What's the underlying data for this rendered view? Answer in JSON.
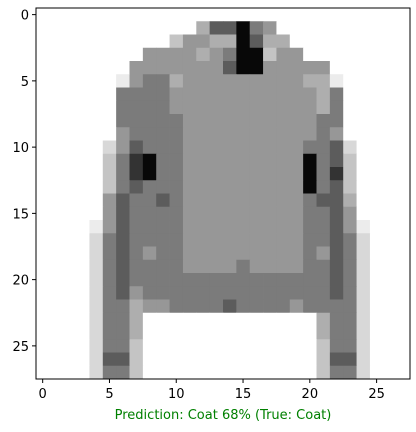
{
  "chart_data": {
    "type": "heatmap",
    "colormap": "binary",
    "grid": false,
    "xlim": [
      -0.5,
      27.5
    ],
    "ylim": [
      27.5,
      -0.5
    ],
    "xticks": [
      0,
      5,
      10,
      15,
      20,
      25
    ],
    "yticks": [
      0,
      5,
      10,
      15,
      20,
      25
    ],
    "caption": "Prediction: Coat 68% (True: Coat)",
    "caption_color": "#008000",
    "pixels": [
      "0000000000000000000000000000",
      "0000000000004779650000000000",
      "0000000000355449744000000000",
      "0000000055554569935500000000",
      "0000000555555579955555000000",
      "0000001566455555555544100000",
      "0000006666555555555554600000",
      "0000006666555555555554600000",
      "0000006666655555555556600000",
      "0000005666655555555556500000",
      "0000025766655555555566720000",
      "0000036896655555555596730000",
      "0000036896655555555596830000",
      "0000036766655555555596730000",
      "0000057667655555555567740000",
      "0000057666655555555566750000",
      "0000157666655555555566751000",
      "0000267666655555555566762000",
      "0000267656655555555565762000",
      "0000267666655556555566762000",
      "0000267666666666666666762000",
      "0000267566666666666666762000",
      "0000266455666676666566662000",
      "0000266400000000000004662000",
      "0000266400000000000004662000",
      "0000266300000000000003662000",
      "0000277300000000000003772000",
      "0000266300000000000003662000"
    ]
  }
}
